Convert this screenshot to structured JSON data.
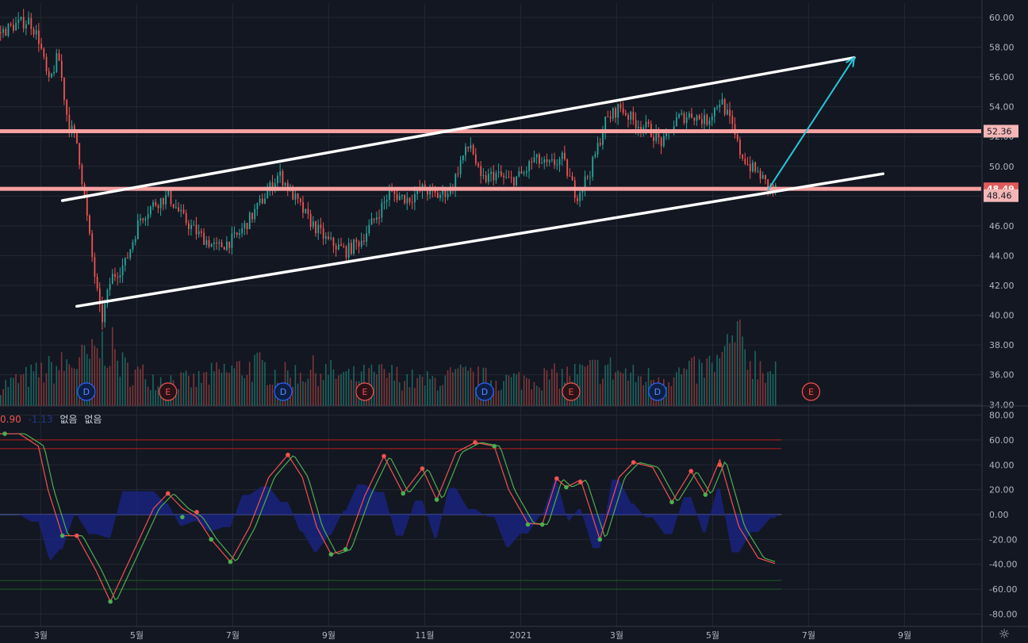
{
  "chart_data": [
    {
      "type": "candlestick",
      "x_labels": [
        "3월",
        "5월",
        "7월",
        "9월",
        "11월",
        "2021",
        "3월",
        "5월",
        "7월",
        "9월"
      ],
      "y_ticks": [
        "60.00",
        "58.00",
        "56.00",
        "54.00",
        "52.00",
        "50.00",
        "48.00",
        "46.00",
        "44.00",
        "42.00",
        "40.00",
        "38.00",
        "36.00",
        "34.00"
      ],
      "ylim": [
        34,
        61
      ],
      "price_path": [
        [
          0,
          59.0
        ],
        [
          0.3,
          59.5
        ],
        [
          0.6,
          59.8
        ],
        [
          0.8,
          58.5
        ],
        [
          1.0,
          55.5
        ],
        [
          1.2,
          57.5
        ],
        [
          1.4,
          53.0
        ],
        [
          1.6,
          51.5
        ],
        [
          1.9,
          44.0
        ],
        [
          2.1,
          39.5
        ],
        [
          2.3,
          42.5
        ],
        [
          2.6,
          43.5
        ],
        [
          2.9,
          46.5
        ],
        [
          3.2,
          47.5
        ],
        [
          3.5,
          48.0
        ],
        [
          3.8,
          46.5
        ],
        [
          4.1,
          45.5
        ],
        [
          4.5,
          44.5
        ],
        [
          4.9,
          45.2
        ],
        [
          5.2,
          46.5
        ],
        [
          5.5,
          48.0
        ],
        [
          5.8,
          49.5
        ],
        [
          6.1,
          48.0
        ],
        [
          6.4,
          46.5
        ],
        [
          6.8,
          45.0
        ],
        [
          7.2,
          44.3
        ],
        [
          7.5,
          45.0
        ],
        [
          7.8,
          46.5
        ],
        [
          8.1,
          48.2
        ],
        [
          8.5,
          47.8
        ],
        [
          8.8,
          48.5
        ],
        [
          9.1,
          48.0
        ],
        [
          9.4,
          48.5
        ],
        [
          9.6,
          50.5
        ],
        [
          9.8,
          51.5
        ],
        [
          10.0,
          49.0
        ],
        [
          10.3,
          49.5
        ],
        [
          10.6,
          49.0
        ],
        [
          10.9,
          49.5
        ],
        [
          11.1,
          50.5
        ],
        [
          11.4,
          50.0
        ],
        [
          11.7,
          50.5
        ],
        [
          12.0,
          48.0
        ],
        [
          12.3,
          49.8
        ],
        [
          12.6,
          53.0
        ],
        [
          12.9,
          54.0
        ],
        [
          13.2,
          53.0
        ],
        [
          13.5,
          52.5
        ],
        [
          13.8,
          51.5
        ],
        [
          14.1,
          53.2
        ],
        [
          14.4,
          53.5
        ],
        [
          14.7,
          53.0
        ],
        [
          15.0,
          54.5
        ],
        [
          15.2,
          53.0
        ],
        [
          15.4,
          51.0
        ],
        [
          15.6,
          50.0
        ],
        [
          15.8,
          49.5
        ],
        [
          16.0,
          48.6
        ],
        [
          16.2,
          48.4
        ]
      ],
      "volume_profile": [
        [
          0,
          25
        ],
        [
          1.0,
          45
        ],
        [
          1.9,
          60
        ],
        [
          2.2,
          80
        ],
        [
          2.6,
          45
        ],
        [
          3.2,
          35
        ],
        [
          4.0,
          30
        ],
        [
          4.6,
          42
        ],
        [
          5.3,
          50
        ],
        [
          5.9,
          38
        ],
        [
          6.6,
          45
        ],
        [
          7.3,
          35
        ],
        [
          8.0,
          40
        ],
        [
          8.8,
          30
        ],
        [
          9.6,
          38
        ],
        [
          10.4,
          32
        ],
        [
          11.2,
          35
        ],
        [
          12.0,
          40
        ],
        [
          12.6,
          48
        ],
        [
          13.3,
          35
        ],
        [
          14.0,
          38
        ],
        [
          14.6,
          45
        ],
        [
          15.0,
          55
        ],
        [
          15.3,
          85
        ],
        [
          15.6,
          60
        ],
        [
          16.0,
          45
        ],
        [
          16.2,
          40
        ]
      ],
      "horizontal_levels": [
        52.36,
        48.49
      ],
      "price_labels": [
        "52.36",
        "48.49",
        "48.46"
      ],
      "trendlines": [
        {
          "from": [
            1.3,
            47.7
          ],
          "to": [
            17.8,
            57.3
          ]
        },
        {
          "from": [
            1.6,
            40.6
          ],
          "to": [
            18.4,
            49.5
          ]
        }
      ],
      "arrow": {
        "from": [
          16.0,
          48.4
        ],
        "to": [
          17.8,
          57.3
        ]
      },
      "event_markers": [
        {
          "x": 1.8,
          "label": "D"
        },
        {
          "x": 3.5,
          "label": "E"
        },
        {
          "x": 5.9,
          "label": "D"
        },
        {
          "x": 7.6,
          "label": "E"
        },
        {
          "x": 10.1,
          "label": "D"
        },
        {
          "x": 11.9,
          "label": "E"
        },
        {
          "x": 13.7,
          "label": "D"
        },
        {
          "x": 16.9,
          "label": "E"
        }
      ],
      "colors": {
        "up": "#26a69a",
        "down": "#ef5350",
        "level": "#f7a1a1",
        "trend": "#ffffff",
        "arrow": "#26c6da",
        "marker_d": "#2962ff",
        "marker_e": "#ef5350"
      }
    },
    {
      "type": "line",
      "legend": [
        "0.90",
        "-1.13",
        "없음",
        "없음"
      ],
      "y_ticks": [
        "80.00",
        "60.00",
        "40.00",
        "20.00",
        "0.00",
        "-20.00",
        "-40.00",
        "-60.00",
        "-80.00"
      ],
      "ylim": [
        -85,
        85
      ],
      "bands": {
        "upper": [
          53,
          60
        ],
        "lower": [
          -53,
          -60
        ]
      },
      "line_path": [
        [
          0,
          65
        ],
        [
          0.4,
          65
        ],
        [
          0.8,
          55
        ],
        [
          1.0,
          20
        ],
        [
          1.3,
          -17
        ],
        [
          1.6,
          -17
        ],
        [
          2.0,
          -45
        ],
        [
          2.3,
          -70
        ],
        [
          2.6,
          -45
        ],
        [
          2.9,
          -20
        ],
        [
          3.2,
          5
        ],
        [
          3.5,
          17
        ],
        [
          3.8,
          5
        ],
        [
          4.1,
          -2
        ],
        [
          4.4,
          -20
        ],
        [
          4.8,
          -38
        ],
        [
          5.2,
          -10
        ],
        [
          5.6,
          30
        ],
        [
          6.0,
          48
        ],
        [
          6.3,
          30
        ],
        [
          6.6,
          -10
        ],
        [
          6.9,
          -32
        ],
        [
          7.2,
          -28
        ],
        [
          7.6,
          15
        ],
        [
          8.0,
          47
        ],
        [
          8.4,
          17
        ],
        [
          8.8,
          37
        ],
        [
          9.1,
          12
        ],
        [
          9.5,
          50
        ],
        [
          9.9,
          58
        ],
        [
          10.3,
          55
        ],
        [
          10.6,
          20
        ],
        [
          11.0,
          -7
        ],
        [
          11.3,
          -8
        ],
        [
          11.6,
          29
        ],
        [
          11.8,
          22
        ],
        [
          12.1,
          28
        ],
        [
          12.5,
          -20
        ],
        [
          12.9,
          30
        ],
        [
          13.2,
          42
        ],
        [
          13.6,
          38
        ],
        [
          14.0,
          10
        ],
        [
          14.4,
          35
        ],
        [
          14.7,
          16
        ],
        [
          15.0,
          44
        ],
        [
          15.4,
          -10
        ],
        [
          15.8,
          -35
        ],
        [
          16.2,
          -40
        ]
      ],
      "signal_points": [
        {
          "x": 0.1,
          "y": 65,
          "c": "up"
        },
        {
          "x": 1.3,
          "y": -17,
          "c": "up"
        },
        {
          "x": 1.6,
          "y": -17,
          "c": "down"
        },
        {
          "x": 2.3,
          "y": -70,
          "c": "up"
        },
        {
          "x": 3.5,
          "y": 17,
          "c": "down"
        },
        {
          "x": 3.8,
          "y": -2,
          "c": "up"
        },
        {
          "x": 4.1,
          "y": 2,
          "c": "down"
        },
        {
          "x": 4.4,
          "y": -20,
          "c": "up"
        },
        {
          "x": 4.8,
          "y": -38,
          "c": "up"
        },
        {
          "x": 6.0,
          "y": 48,
          "c": "down"
        },
        {
          "x": 6.9,
          "y": -32,
          "c": "up"
        },
        {
          "x": 7.2,
          "y": -28,
          "c": "up"
        },
        {
          "x": 8.0,
          "y": 47,
          "c": "down"
        },
        {
          "x": 8.4,
          "y": 17,
          "c": "up"
        },
        {
          "x": 8.8,
          "y": 37,
          "c": "down"
        },
        {
          "x": 9.1,
          "y": 12,
          "c": "up"
        },
        {
          "x": 9.9,
          "y": 58,
          "c": "down"
        },
        {
          "x": 10.3,
          "y": 55,
          "c": "up"
        },
        {
          "x": 11.0,
          "y": -8,
          "c": "up"
        },
        {
          "x": 11.3,
          "y": -8,
          "c": "up"
        },
        {
          "x": 11.6,
          "y": 29,
          "c": "down"
        },
        {
          "x": 11.8,
          "y": 22,
          "c": "up"
        },
        {
          "x": 12.1,
          "y": 26,
          "c": "down"
        },
        {
          "x": 12.5,
          "y": -20,
          "c": "up"
        },
        {
          "x": 13.2,
          "y": 42,
          "c": "down"
        },
        {
          "x": 14.0,
          "y": 10,
          "c": "up"
        },
        {
          "x": 14.4,
          "y": 35,
          "c": "down"
        },
        {
          "x": 14.7,
          "y": 16,
          "c": "up"
        },
        {
          "x": 15.0,
          "y": 40,
          "c": "down"
        }
      ],
      "colors": {
        "main": "#ef5350",
        "signal": "#4caf50",
        "hist": "#1a237e",
        "zero": "#5c6bc0",
        "upper": "#b71c1c",
        "lower": "#1b5e20"
      }
    }
  ]
}
